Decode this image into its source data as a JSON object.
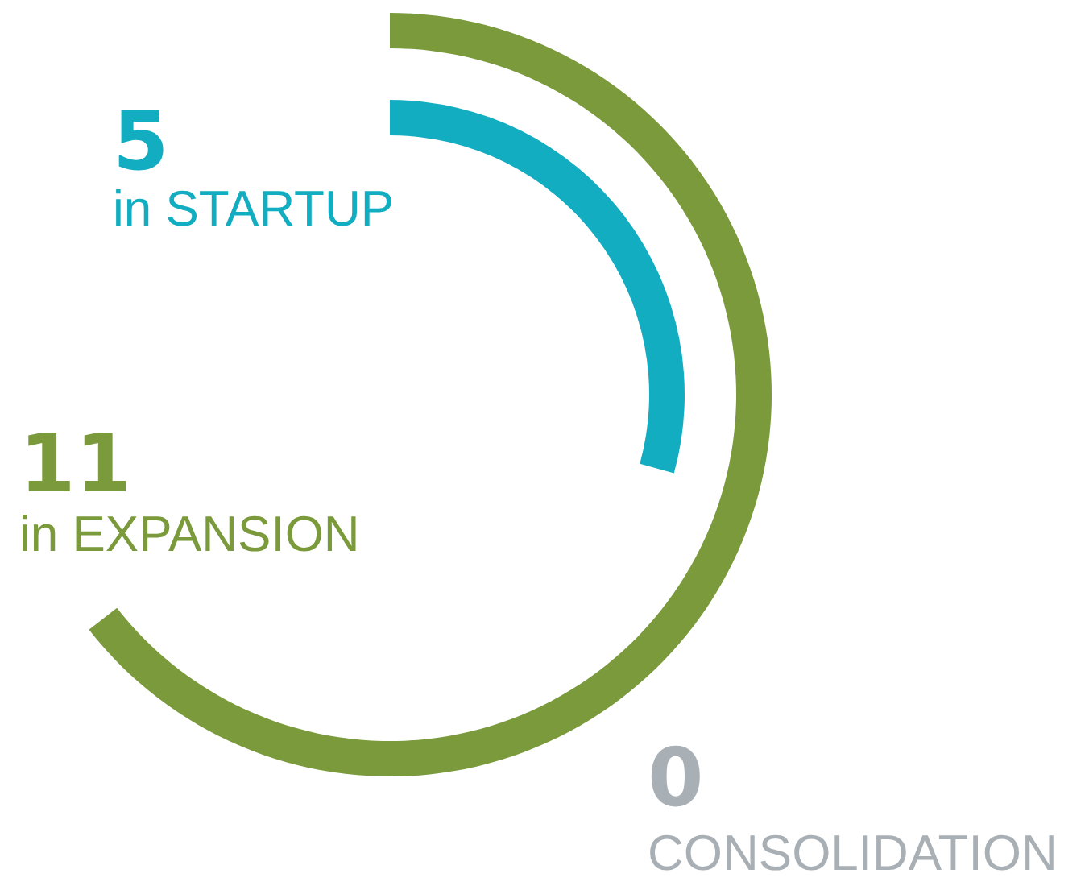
{
  "chart_data": {
    "type": "other",
    "categories": [
      "in STARTUP",
      "in EXPANSION",
      "CONSOLIDATION"
    ],
    "values": [
      5,
      11,
      0
    ],
    "colors": [
      "#12adc1",
      "#7a9a3c",
      "#a9b0b5"
    ],
    "data_labels": true
  }
}
